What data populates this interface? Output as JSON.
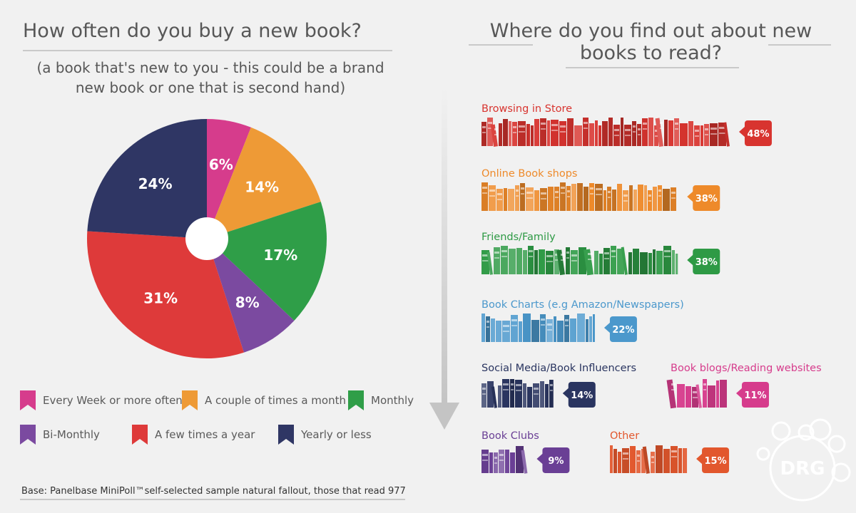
{
  "left_panel": {
    "title": "How often do you buy a new book?",
    "subtitle_line1": "(a book that's new to you - this could be a brand",
    "subtitle_line2": "new book or one that is second hand)",
    "base_note": "Base: Panelbase MiniPoll™self-selected sample natural fallout, those that read 977"
  },
  "right_panel": {
    "title_line1": "Where do you find out about new",
    "title_line2": "books to read?"
  },
  "logo_text": "DRG",
  "chart_data": [
    {
      "type": "pie",
      "title": "How often do you buy a new book?",
      "slices": [
        {
          "label": "Every Week or more often",
          "value": 6,
          "value_label": "6%",
          "color": "#d63c8c"
        },
        {
          "label": "A couple of times a month",
          "value": 14,
          "value_label": "14%",
          "color": "#ee9a36"
        },
        {
          "label": "Monthly",
          "value": 17,
          "value_label": "17%",
          "color": "#2f9e48"
        },
        {
          "label": "Bi-Monthly",
          "value": 8,
          "value_label": "8%",
          "color": "#7b4aa0"
        },
        {
          "label": "A few times a year",
          "value": 31,
          "value_label": "31%",
          "color": "#de3a3a"
        },
        {
          "label": "Yearly or less",
          "value": 24,
          "value_label": "24%",
          "color": "#2f3664"
        }
      ]
    },
    {
      "type": "bar",
      "title": "Where do you find out about new books to read?",
      "bars": [
        {
          "label": "Browsing in Store",
          "value": 48,
          "value_label": "48%",
          "color": "#d8342f"
        },
        {
          "label": "Online Book shops",
          "value": 38,
          "value_label": "38%",
          "color": "#ee8a2a"
        },
        {
          "label": "Friends/Family",
          "value": 38,
          "value_label": "38%",
          "color": "#2e9a45"
        },
        {
          "label": "Book Charts (e.g Amazon/Newspapers)",
          "value": 22,
          "value_label": "22%",
          "color": "#4b98cc"
        },
        {
          "label": "Social Media/Book Influencers",
          "value": 14,
          "value_label": "14%",
          "color": "#2a3560"
        },
        {
          "label": "Book blogs/Reading websites",
          "value": 11,
          "value_label": "11%",
          "color": "#d63c8c"
        },
        {
          "label": "Book Clubs",
          "value": 9,
          "value_label": "9%",
          "color": "#6a3f95"
        },
        {
          "label": "Other",
          "value": 15,
          "value_label": "15%",
          "color": "#e2572d"
        }
      ]
    }
  ]
}
